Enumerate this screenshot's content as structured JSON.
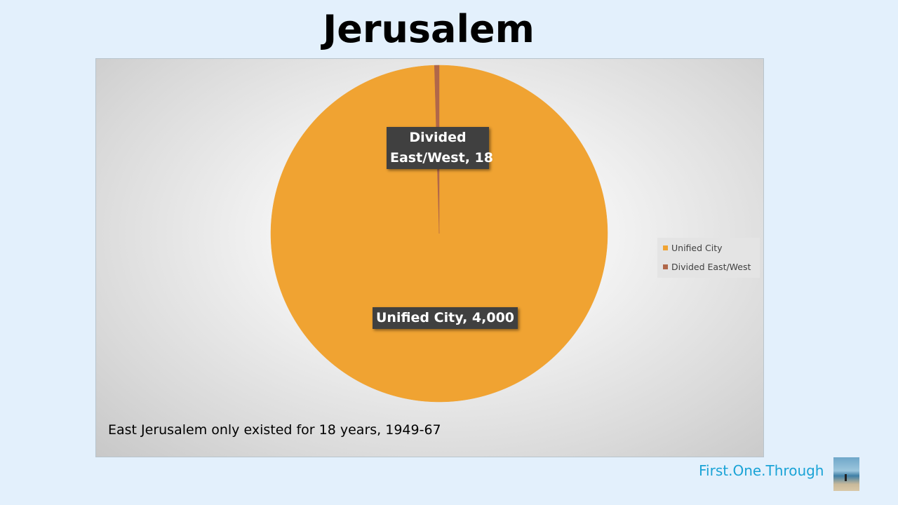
{
  "title": "Jerusalem",
  "chart_data": {
    "type": "pie",
    "slices": [
      {
        "name": "Unified City",
        "value": 4000,
        "color": "#f0a332",
        "data_label": "Unified City, 4,000"
      },
      {
        "name": "Divided East/West",
        "value": 18,
        "color": "#b0674a",
        "data_label_line1": "Divided",
        "data_label_line2": "East/West, 18"
      }
    ],
    "legend": {
      "position": "right",
      "items": [
        {
          "label": "Unified City",
          "color": "#f0a332"
        },
        {
          "label": "Divided East/West",
          "color": "#b0674a"
        }
      ]
    }
  },
  "footnote": "East Jerusalem only existed for 18 years, 1949-67",
  "brand": {
    "text": "First.One.Through",
    "icon": "beach-photo-thumbnail"
  }
}
